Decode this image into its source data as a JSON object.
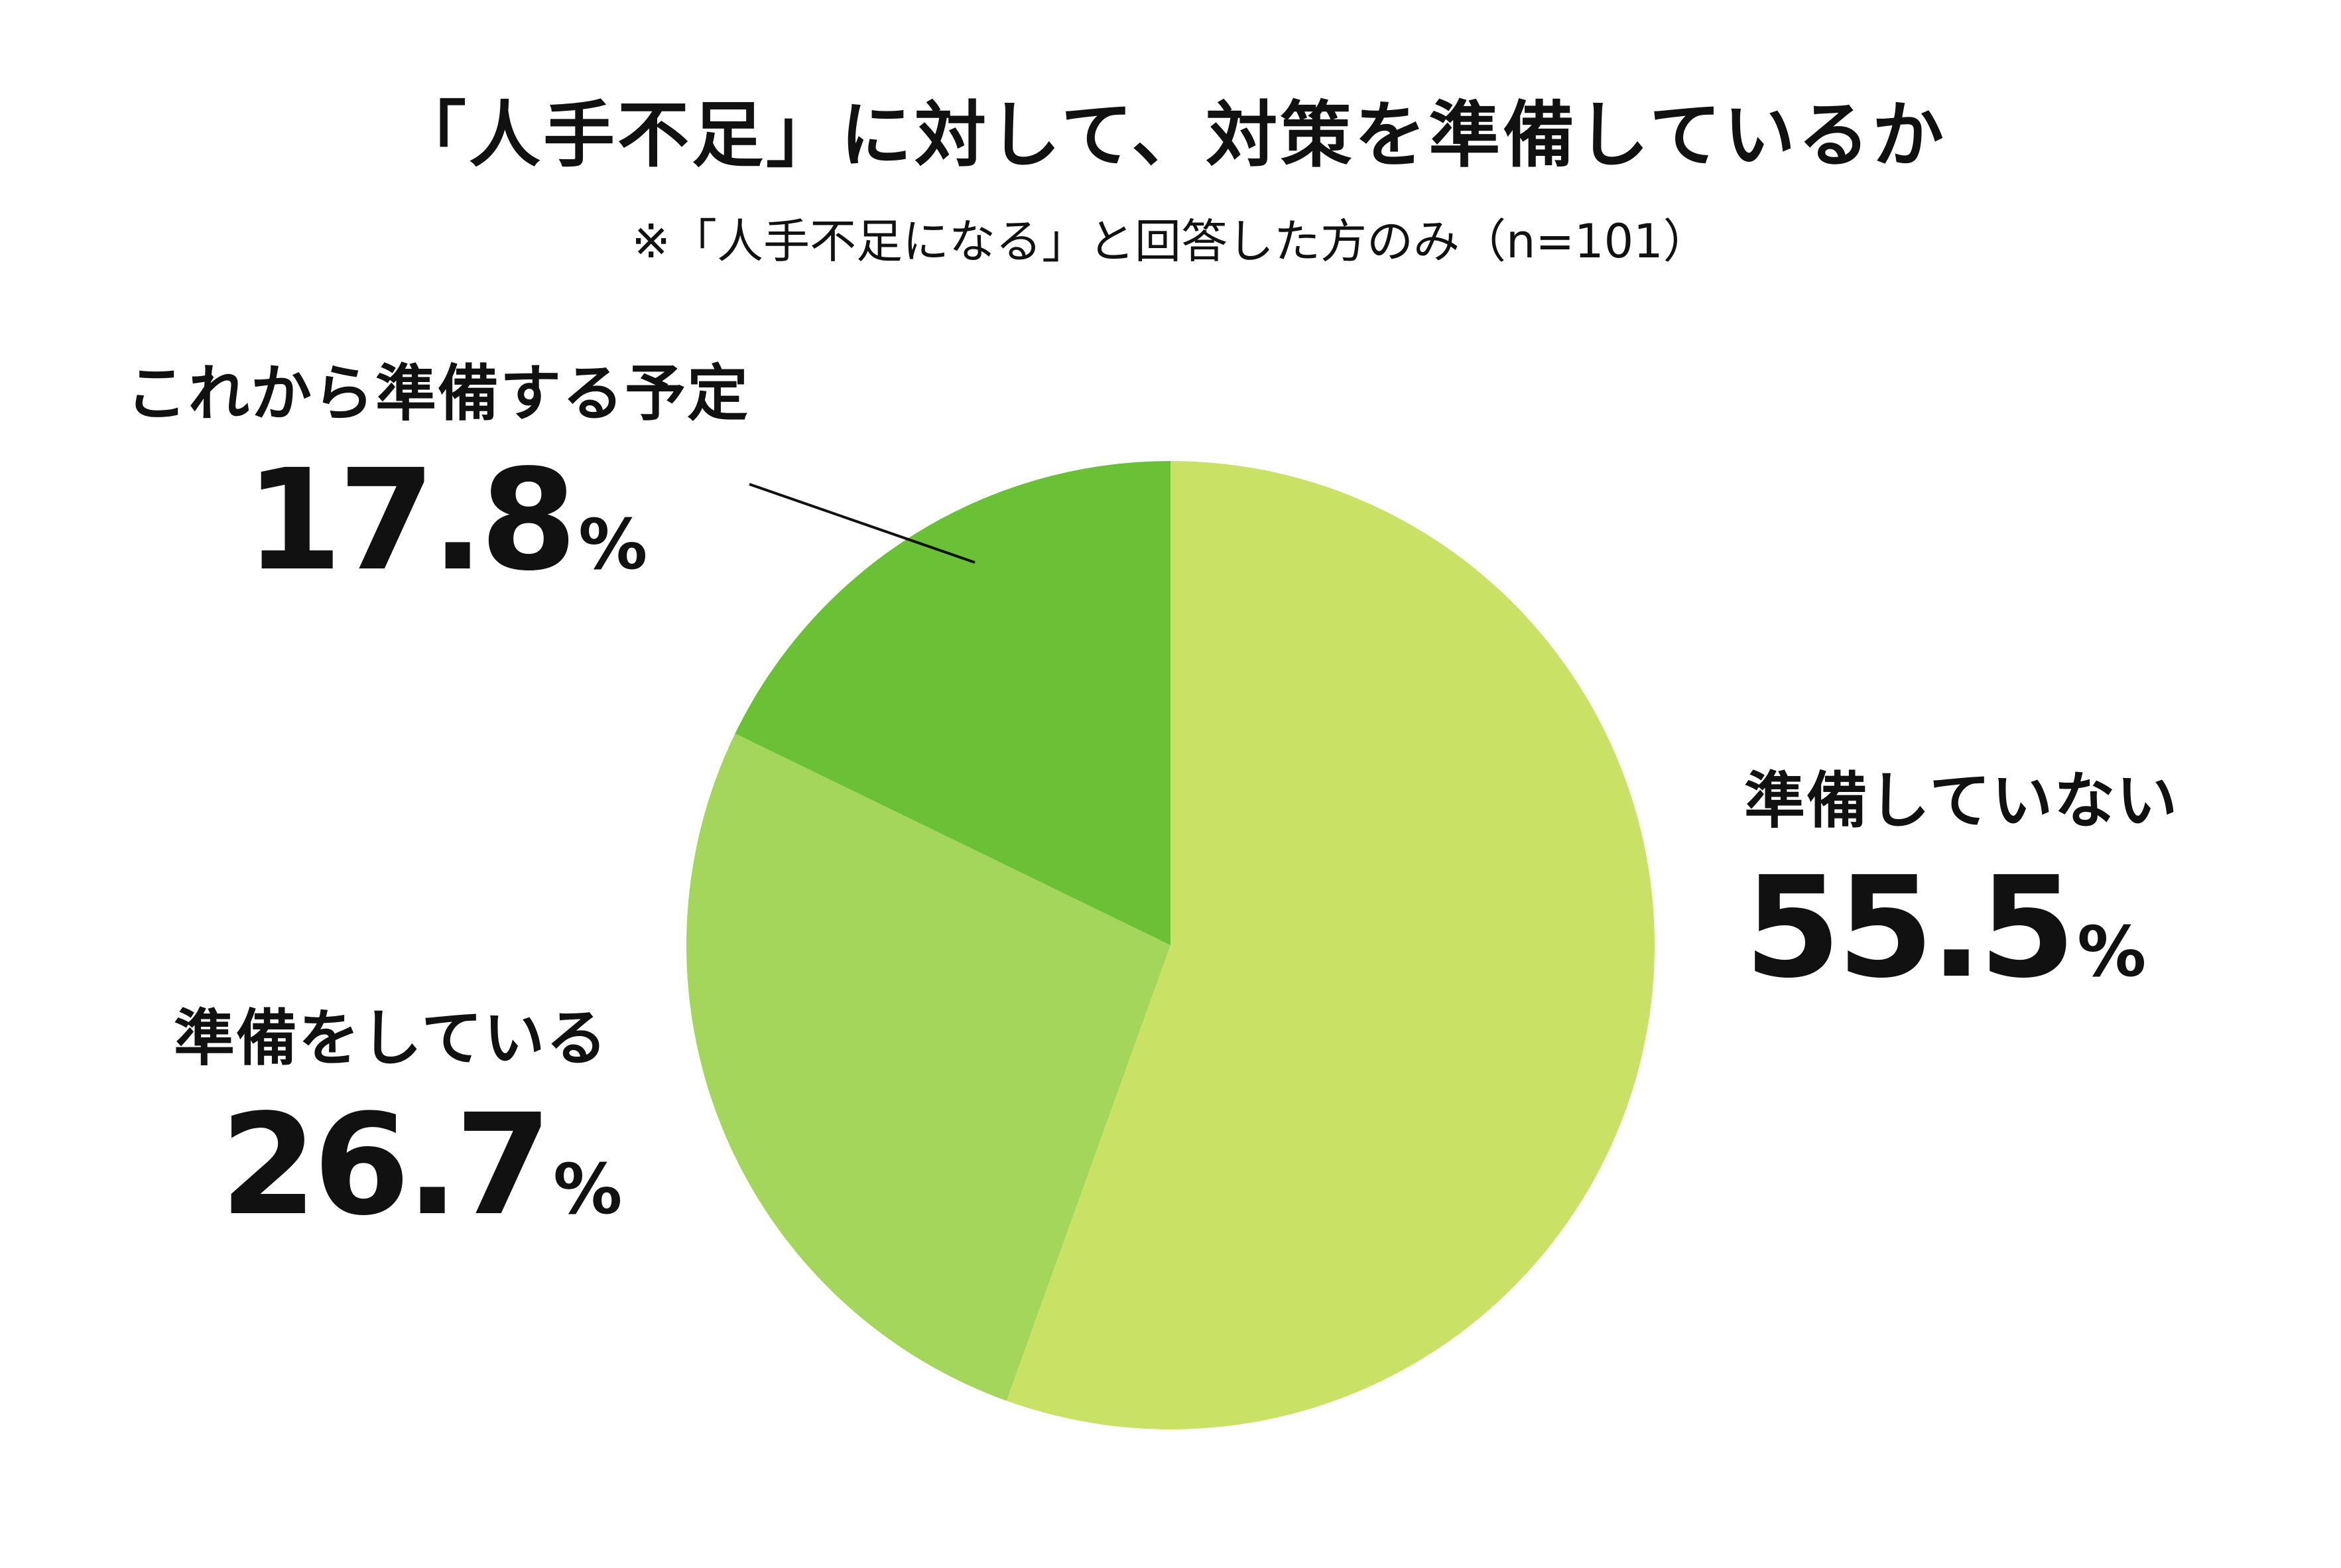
{
  "chart_data": {
    "type": "pie",
    "title": "「人手不足」に対して、対策を準備しているか",
    "subtitle": "※「人手不足になる」と回答した方のみ（n=101）",
    "unit": "%",
    "slices": [
      {
        "label": "準備していない",
        "value": 55.5,
        "value_text": "55.5",
        "color": "#c9e165"
      },
      {
        "label": "準備をしている",
        "value": 26.7,
        "value_text": "26.7",
        "color": "#a3d65a"
      },
      {
        "label": "これから準備する予定",
        "value": 17.8,
        "value_text": "17.8",
        "color": "#6bc135"
      }
    ]
  }
}
